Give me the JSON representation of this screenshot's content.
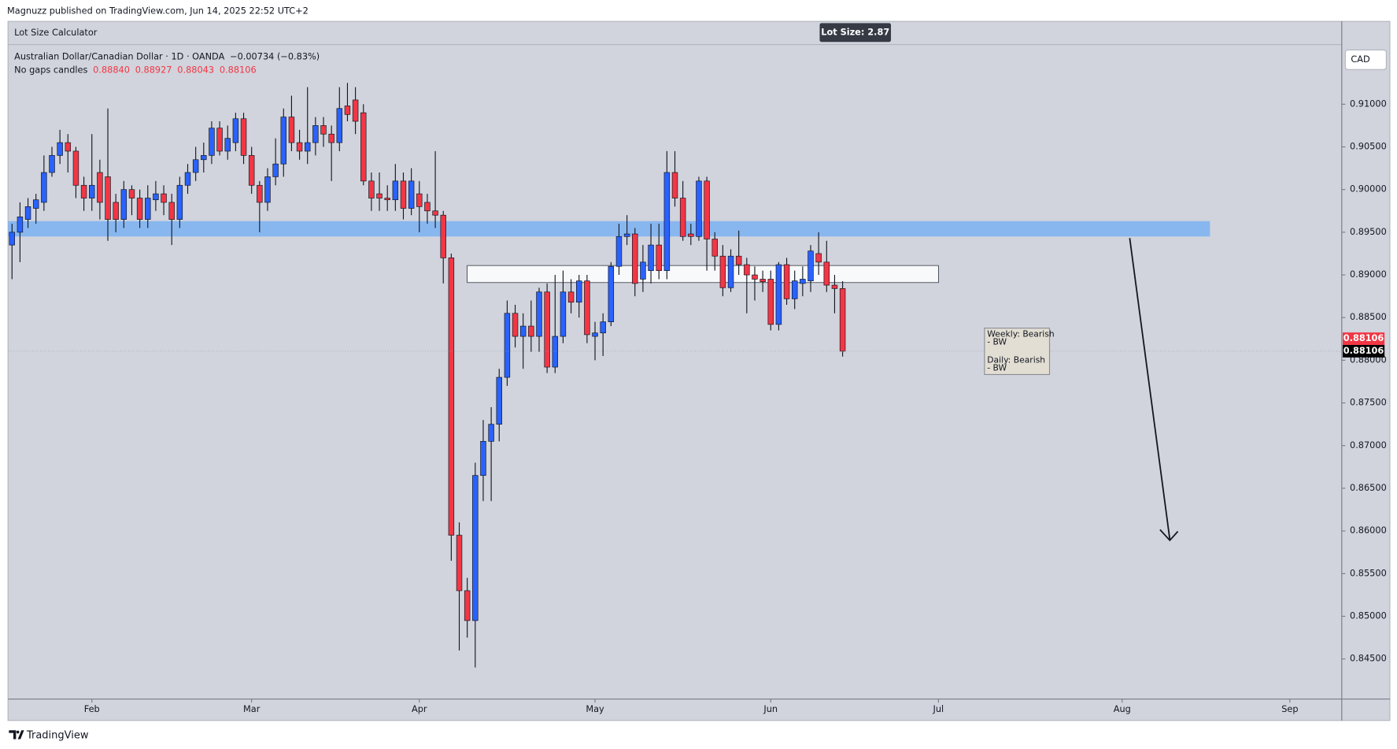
{
  "header": {
    "published": "Magnuzz published on TradingView.com, Jun 14, 2025 22:52 UTC+2",
    "indicator": "Lot Size Calculator",
    "lot_size": "Lot Size: 2.87",
    "symbol": "Australian Dollar/Canadian Dollar · 1D · OANDA",
    "change": "−0.00734 (−0.83%)",
    "style": "No gaps candles",
    "ohlc": [
      "0.88840",
      "0.88927",
      "0.88043",
      "0.88106"
    ],
    "currency": "CAD"
  },
  "annotation": [
    "Weekly: Bearish",
    "- BW",
    "Daily: Bearish",
    "- BW"
  ],
  "footer": {
    "brand": "TradingView"
  },
  "chart_data": {
    "type": "candlestick",
    "up_color": "#2962ff",
    "down_color": "#f23645",
    "ylim": [
      0.8403,
      0.9196
    ],
    "yticks": [
      {
        "value": 0.845,
        "label": "0.84500"
      },
      {
        "value": 0.85,
        "label": "0.85000"
      },
      {
        "value": 0.855,
        "label": "0.85500"
      },
      {
        "value": 0.86,
        "label": "0.86000"
      },
      {
        "value": 0.865,
        "label": "0.86500"
      },
      {
        "value": 0.87,
        "label": "0.87000"
      },
      {
        "value": 0.875,
        "label": "0.87500"
      },
      {
        "value": 0.88,
        "label": "0.88000"
      },
      {
        "value": 0.885,
        "label": "0.88500"
      },
      {
        "value": 0.89,
        "label": "0.89000"
      },
      {
        "value": 0.895,
        "label": "0.89500"
      },
      {
        "value": 0.9,
        "label": "0.90000"
      },
      {
        "value": 0.905,
        "label": "0.90500"
      },
      {
        "value": 0.91,
        "label": "0.91000"
      }
    ],
    "grid": false,
    "zones": [
      {
        "top": 0.8963,
        "bottom": 0.8945,
        "color": "#7fb4f2"
      },
      {
        "top": 0.8911,
        "bottom": 0.8891,
        "color": "#ffffff"
      }
    ],
    "categories": [
      null,
      null,
      null,
      null,
      null,
      null,
      null,
      null,
      null,
      null,
      "Feb",
      null,
      null,
      null,
      null,
      null,
      null,
      null,
      null,
      null,
      null,
      null,
      null,
      null,
      null,
      null,
      null,
      null,
      null,
      null,
      "Mar",
      null,
      null,
      null,
      null,
      null,
      null,
      null,
      null,
      null,
      null,
      null,
      null,
      null,
      null,
      null,
      null,
      null,
      null,
      null,
      null,
      "Apr",
      null,
      null,
      null,
      null,
      null,
      null,
      null,
      null,
      null,
      null,
      null,
      null,
      null,
      null,
      null,
      null,
      null,
      null,
      null,
      null,
      null,
      "May",
      null,
      null,
      null,
      null,
      null,
      null,
      null,
      null,
      null,
      null,
      null,
      null,
      null,
      null,
      null,
      null,
      null,
      null,
      null,
      null,
      null,
      "Jun",
      null,
      null,
      null,
      null,
      null,
      null,
      null,
      null,
      null,
      null,
      null,
      null,
      null,
      null,
      null,
      null,
      null,
      null,
      null,
      null,
      "Jul",
      null,
      null,
      null,
      null,
      null,
      null,
      null,
      null,
      null,
      null,
      null,
      null,
      null,
      null,
      null,
      null,
      null,
      null,
      null,
      null,
      null,
      null,
      "Aug",
      null,
      null,
      null,
      null,
      null,
      null,
      null,
      null,
      null,
      null,
      null,
      null,
      null,
      null,
      null,
      null,
      null,
      null,
      null,
      null,
      "Sep",
      null,
      null,
      null,
      null,
      null,
      null
    ],
    "open": [
      0.8935,
      0.895,
      0.8965,
      0.8978,
      0.8985,
      0.902,
      0.904,
      0.9055,
      0.9045,
      0.9005,
      0.899,
      0.902,
      0.9015,
      0.8985,
      0.8965,
      0.9,
      0.899,
      0.8965,
      0.8988,
      0.8995,
      0.8985,
      0.8965,
      0.9005,
      0.902,
      0.9035,
      0.904,
      0.9072,
      0.9045,
      0.9055,
      0.9083,
      0.904,
      0.9005,
      0.8985,
      0.9015,
      0.903,
      0.9085,
      0.9055,
      0.9045,
      0.9055,
      0.9075,
      0.9065,
      0.9055,
      0.9098,
      0.9105,
      0.909,
      0.901,
      0.8995,
      0.899,
      0.8988,
      0.901,
      0.8978,
      0.8995,
      0.8985,
      0.8975,
      0.897,
      0.892,
      0.8595,
      0.853,
      0.8495,
      0.8665,
      0.8705,
      0.8725,
      0.878,
      0.8855,
      0.8828,
      0.884,
      0.8828,
      0.888,
      0.8792,
      0.8828,
      0.888,
      0.8868,
      0.8893,
      0.8828,
      0.8832,
      0.8845,
      0.891,
      0.8945,
      0.8948,
      0.8895,
      0.8905,
      0.8935,
      0.8905,
      0.902,
      0.899,
      0.8948,
      0.8945,
      0.901,
      0.8942,
      0.8922,
      0.8885,
      0.8922,
      0.8912,
      0.89,
      0.8895,
      0.8895,
      0.8842,
      0.8912,
      0.8872,
      0.889,
      0.8893,
      0.8925,
      0.8915,
      0.8888,
      0.8884,
      null,
      null,
      null,
      null,
      null,
      null,
      null,
      null,
      null,
      null,
      null,
      null,
      null,
      null,
      null,
      null,
      null,
      null,
      null,
      null,
      null,
      null,
      null,
      null,
      null,
      null,
      null,
      null,
      null,
      null,
      null,
      null,
      null,
      null,
      null,
      null,
      null,
      null,
      null,
      null,
      null,
      null,
      null,
      null,
      null,
      null,
      null,
      null,
      null,
      null,
      null,
      null,
      null,
      null,
      null,
      null,
      null,
      null,
      null,
      null,
      null,
      null
    ],
    "high": [
      0.896,
      0.8985,
      0.899,
      0.8995,
      0.904,
      0.905,
      0.907,
      0.9065,
      0.905,
      0.9015,
      0.9065,
      0.9035,
      0.9095,
      0.8995,
      0.901,
      0.9005,
      0.9,
      0.9005,
      0.901,
      0.9005,
      0.8995,
      0.9015,
      0.903,
      0.905,
      0.9055,
      0.908,
      0.908,
      0.9075,
      0.909,
      0.909,
      0.905,
      0.901,
      0.9025,
      0.906,
      0.9095,
      0.911,
      0.907,
      0.912,
      0.9085,
      0.9085,
      0.9075,
      0.912,
      0.9125,
      0.912,
      0.91,
      0.902,
      0.902,
      0.9005,
      0.903,
      0.902,
      0.9025,
      0.901,
      0.8995,
      0.9045,
      0.8975,
      0.8925,
      0.861,
      0.8545,
      0.868,
      0.873,
      0.8745,
      0.879,
      0.887,
      0.8865,
      0.8855,
      0.887,
      0.8885,
      0.889,
      0.89,
      0.8905,
      0.8895,
      0.89,
      0.89,
      0.8845,
      0.8855,
      0.8915,
      0.896,
      0.897,
      0.8955,
      0.8935,
      0.896,
      0.896,
      0.9045,
      0.9045,
      0.901,
      0.896,
      0.9015,
      0.9015,
      0.895,
      0.8935,
      0.893,
      0.8952,
      0.892,
      0.891,
      0.8905,
      0.8905,
      0.8915,
      0.892,
      0.8905,
      0.891,
      0.8935,
      0.895,
      0.894,
      0.89,
      0.88927,
      null,
      null,
      null,
      null,
      null,
      null,
      null,
      null,
      null,
      null,
      null,
      null,
      null,
      null,
      null,
      null,
      null,
      null,
      null,
      null,
      null,
      null,
      null,
      null,
      null,
      null,
      null,
      null,
      null,
      null,
      null,
      null,
      null,
      null,
      null,
      null,
      null,
      null,
      null,
      null,
      null,
      null,
      null,
      null,
      null,
      null,
      null,
      null,
      null,
      null,
      null,
      null,
      null,
      null,
      null,
      null,
      null,
      null,
      null,
      null,
      null,
      null
    ],
    "low": [
      0.8895,
      0.8915,
      0.8955,
      0.896,
      0.8975,
      0.9015,
      0.903,
      0.902,
      0.899,
      0.8975,
      0.8975,
      0.8965,
      0.894,
      0.895,
      0.8955,
      0.897,
      0.8955,
      0.8955,
      0.8975,
      0.897,
      0.8935,
      0.8955,
      0.8995,
      0.901,
      0.902,
      0.903,
      0.904,
      0.9035,
      0.9045,
      0.903,
      0.8995,
      0.895,
      0.8975,
      0.9005,
      0.9015,
      0.9045,
      0.9035,
      0.903,
      0.904,
      0.905,
      0.901,
      0.9045,
      0.908,
      0.9065,
      0.9005,
      0.8975,
      0.8975,
      0.8975,
      0.8975,
      0.8965,
      0.897,
      0.895,
      0.896,
      0.8955,
      0.889,
      0.8565,
      0.846,
      0.8475,
      0.844,
      0.8635,
      0.8635,
      0.8705,
      0.877,
      0.8815,
      0.879,
      0.881,
      0.881,
      0.8785,
      0.8785,
      0.882,
      0.8855,
      0.885,
      0.882,
      0.88,
      0.8805,
      0.884,
      0.89,
      0.8935,
      0.8875,
      0.888,
      0.889,
      0.8895,
      0.8895,
      0.898,
      0.894,
      0.8935,
      0.894,
      0.8905,
      0.8905,
      0.8875,
      0.888,
      0.89,
      0.8855,
      0.887,
      0.888,
      0.8835,
      0.8835,
      0.8865,
      0.886,
      0.8875,
      0.888,
      0.89,
      0.888,
      0.8855,
      0.88043,
      null,
      null,
      null,
      null,
      null,
      null,
      null,
      null,
      null,
      null,
      null,
      null,
      null,
      null,
      null,
      null,
      null,
      null,
      null,
      null,
      null,
      null,
      null,
      null,
      null,
      null,
      null,
      null,
      null,
      null,
      null,
      null,
      null,
      null,
      null,
      null,
      null,
      null,
      null,
      null,
      null,
      null,
      null,
      null,
      null,
      null,
      null,
      null,
      null,
      null,
      null,
      null,
      null,
      null,
      null,
      null,
      null,
      null,
      null,
      null,
      null,
      null
    ],
    "close": [
      0.895,
      0.8968,
      0.898,
      0.8988,
      0.902,
      0.904,
      0.9055,
      0.9045,
      0.9005,
      0.899,
      0.9005,
      0.8985,
      0.8965,
      0.8965,
      0.9,
      0.899,
      0.8965,
      0.899,
      0.8995,
      0.8985,
      0.8965,
      0.9005,
      0.902,
      0.9035,
      0.904,
      0.9072,
      0.9045,
      0.906,
      0.9083,
      0.904,
      0.9005,
      0.8985,
      0.9015,
      0.903,
      0.9085,
      0.9055,
      0.9045,
      0.9055,
      0.9075,
      0.9065,
      0.9055,
      0.9095,
      0.9088,
      0.908,
      0.901,
      0.899,
      0.899,
      0.8988,
      0.901,
      0.8978,
      0.901,
      0.898,
      0.8975,
      0.897,
      0.892,
      0.8595,
      0.853,
      0.8495,
      0.8665,
      0.8705,
      0.8725,
      0.878,
      0.8855,
      0.8828,
      0.884,
      0.8828,
      0.888,
      0.8792,
      0.8828,
      0.888,
      0.8868,
      0.8893,
      0.883,
      0.8832,
      0.8845,
      0.891,
      0.8945,
      0.8948,
      0.889,
      0.8915,
      0.8935,
      0.8905,
      0.902,
      0.899,
      0.8945,
      0.8945,
      0.901,
      0.8942,
      0.8922,
      0.8885,
      0.8922,
      0.8912,
      0.89,
      0.8895,
      0.8892,
      0.8842,
      0.8912,
      0.8872,
      0.8893,
      0.8895,
      0.8928,
      0.8915,
      0.8888,
      0.8884,
      0.88106,
      null,
      null,
      null,
      null,
      null,
      null,
      null,
      null,
      null,
      null,
      null,
      null,
      null,
      null,
      null,
      null,
      null,
      null,
      null,
      null,
      null,
      null,
      null,
      null,
      null,
      null,
      null,
      null,
      null,
      null,
      null,
      null,
      null,
      null,
      null,
      null,
      null,
      null,
      null,
      null,
      null,
      null,
      null,
      null,
      null,
      null,
      null,
      null,
      null,
      null,
      null,
      null,
      null,
      null,
      null,
      null,
      null,
      null,
      null,
      null,
      null,
      null
    ]
  }
}
